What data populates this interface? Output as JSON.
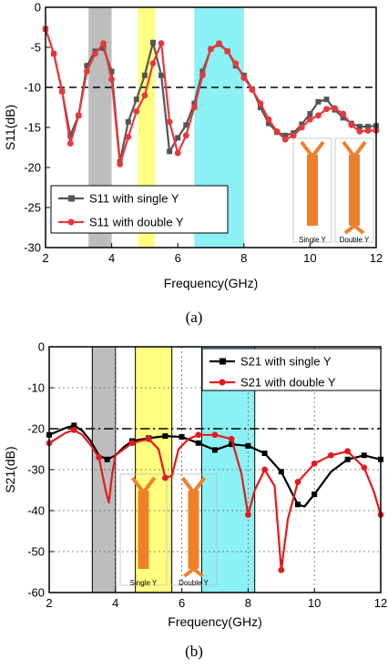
{
  "chart_data": [
    {
      "type": "line",
      "caption": "(a)",
      "xlabel": "Frequency(GHz)",
      "ylabel": "S11(dB)",
      "xlim": [
        2,
        12
      ],
      "ylim": [
        -30,
        0
      ],
      "xticks": [
        2,
        4,
        6,
        8,
        10,
        12
      ],
      "yticks": [
        0,
        -5,
        -10,
        -15,
        -20,
        -25,
        -30
      ],
      "grid": false,
      "reference_line": {
        "y": -10,
        "style": "dashed"
      },
      "legend_position": "lower-left",
      "bands": [
        {
          "x": [
            3.3,
            4.0
          ],
          "color": "#bdbdbd"
        },
        {
          "x": [
            4.8,
            5.3
          ],
          "color": "#ffff80"
        },
        {
          "x": [
            6.5,
            8.0
          ],
          "color": "#8cf1f5"
        }
      ],
      "inset_labels": [
        "Single Y",
        "Double Y"
      ],
      "series": [
        {
          "name": "S11 with single Y",
          "color": "#555555",
          "marker": "square",
          "points": [
            [
              2.0,
              -2.7
            ],
            [
              2.25,
              -5.8
            ],
            [
              2.5,
              -10.5
            ],
            [
              2.75,
              -16.0
            ],
            [
              3.0,
              -13.5
            ],
            [
              3.25,
              -7.3
            ],
            [
              3.5,
              -5.5
            ],
            [
              3.75,
              -5.1
            ],
            [
              4.0,
              -8.0
            ],
            [
              4.25,
              -19.3
            ],
            [
              4.5,
              -14.3
            ],
            [
              4.75,
              -11.5
            ],
            [
              5.0,
              -8.5
            ],
            [
              5.25,
              -4.4
            ],
            [
              5.5,
              -8.5
            ],
            [
              5.75,
              -18.0
            ],
            [
              6.0,
              -16.3
            ],
            [
              6.25,
              -14.7
            ],
            [
              6.5,
              -12.0
            ],
            [
              6.75,
              -8.0
            ],
            [
              7.0,
              -5.2
            ],
            [
              7.25,
              -4.6
            ],
            [
              7.5,
              -5.5
            ],
            [
              7.75,
              -7.3
            ],
            [
              8.0,
              -8.5
            ],
            [
              8.25,
              -10.2
            ],
            [
              8.5,
              -12.5
            ],
            [
              8.75,
              -14.5
            ],
            [
              9.0,
              -15.6
            ],
            [
              9.25,
              -16.0
            ],
            [
              9.5,
              -15.7
            ],
            [
              9.75,
              -14.6
            ],
            [
              10.0,
              -13.3
            ],
            [
              10.25,
              -11.8
            ],
            [
              10.5,
              -11.5
            ],
            [
              10.75,
              -12.8
            ],
            [
              11.0,
              -13.8
            ],
            [
              11.25,
              -14.5
            ],
            [
              11.5,
              -14.9
            ],
            [
              11.75,
              -14.9
            ],
            [
              12.0,
              -14.8
            ]
          ]
        },
        {
          "name": "S11 with double Y",
          "color": "#e8383c",
          "marker": "circle",
          "points": [
            [
              2.0,
              -2.7
            ],
            [
              2.25,
              -5.8
            ],
            [
              2.5,
              -10.5
            ],
            [
              2.75,
              -17.0
            ],
            [
              3.0,
              -13.5
            ],
            [
              3.25,
              -8.0
            ],
            [
              3.5,
              -5.8
            ],
            [
              3.75,
              -4.5
            ],
            [
              4.0,
              -9.0
            ],
            [
              4.25,
              -19.6
            ],
            [
              4.5,
              -16.2
            ],
            [
              4.75,
              -13.0
            ],
            [
              5.0,
              -11.0
            ],
            [
              5.25,
              -7.0
            ],
            [
              5.5,
              -4.5
            ],
            [
              5.75,
              -14.3
            ],
            [
              6.0,
              -18.2
            ],
            [
              6.25,
              -16.0
            ],
            [
              6.5,
              -12.5
            ],
            [
              6.75,
              -8.5
            ],
            [
              7.0,
              -5.2
            ],
            [
              7.25,
              -4.5
            ],
            [
              7.5,
              -5.5
            ],
            [
              7.75,
              -7.0
            ],
            [
              8.0,
              -8.8
            ],
            [
              8.25,
              -10.3
            ],
            [
              8.5,
              -12.0
            ],
            [
              8.75,
              -14.0
            ],
            [
              9.0,
              -15.5
            ],
            [
              9.25,
              -16.5
            ],
            [
              9.5,
              -16.0
            ],
            [
              9.75,
              -15.0
            ],
            [
              10.0,
              -14.0
            ],
            [
              10.25,
              -13.5
            ],
            [
              10.5,
              -12.7
            ],
            [
              10.75,
              -12.6
            ],
            [
              11.0,
              -13.3
            ],
            [
              11.25,
              -14.7
            ],
            [
              11.5,
              -15.5
            ],
            [
              11.75,
              -15.4
            ],
            [
              12.0,
              -15.4
            ]
          ]
        }
      ]
    },
    {
      "type": "line",
      "caption": "(b)",
      "xlabel": "Frequency(GHz)",
      "ylabel": "S21(dB)",
      "xlim": [
        2,
        12
      ],
      "ylim": [
        -60,
        0
      ],
      "xticks": [
        2,
        4,
        6,
        8,
        10,
        12
      ],
      "yticks": [
        0,
        -10,
        -20,
        -30,
        -40,
        -50,
        -60
      ],
      "grid": true,
      "reference_line": {
        "y": -20,
        "style": "dash-dot"
      },
      "legend_position": "top-right",
      "bands": [
        {
          "x": [
            3.3,
            4.0
          ],
          "color": "#bdbdbd"
        },
        {
          "x": [
            4.6,
            5.7
          ],
          "color": "#ffff80"
        },
        {
          "x": [
            6.6,
            8.2
          ],
          "color": "#8cf1f5"
        }
      ],
      "inset_labels": [
        "Single Y",
        "Double Y"
      ],
      "series": [
        {
          "name": "S21 with single Y",
          "color": "#000000",
          "marker": "square",
          "markers_at": [
            2.0,
            2.75,
            3.75,
            4.5,
            5.0,
            5.5,
            6.0,
            6.5,
            7.0,
            7.5,
            8.0,
            8.5,
            9.0,
            9.5,
            10.0,
            11.0,
            11.5,
            12.0
          ],
          "points": [
            [
              2.0,
              -21.5
            ],
            [
              2.5,
              -19.8
            ],
            [
              2.75,
              -19.2
            ],
            [
              3.0,
              -20.5
            ],
            [
              3.25,
              -23.0
            ],
            [
              3.5,
              -26.5
            ],
            [
              3.75,
              -27.5
            ],
            [
              4.0,
              -26.5
            ],
            [
              4.25,
              -24.5
            ],
            [
              4.5,
              -23.0
            ],
            [
              5.0,
              -22.3
            ],
            [
              5.5,
              -21.8
            ],
            [
              6.0,
              -22.0
            ],
            [
              6.5,
              -23.5
            ],
            [
              7.0,
              -25.2
            ],
            [
              7.5,
              -23.8
            ],
            [
              8.0,
              -24.2
            ],
            [
              8.5,
              -26.0
            ],
            [
              9.0,
              -30.5
            ],
            [
              9.5,
              -38.5
            ],
            [
              9.7,
              -39.0
            ],
            [
              10.0,
              -36.0
            ],
            [
              10.5,
              -30.5
            ],
            [
              11.0,
              -27.5
            ],
            [
              11.5,
              -26.5
            ],
            [
              12.0,
              -27.5
            ]
          ]
        },
        {
          "name": "S21 with double Y",
          "color": "#e31a1c",
          "marker": "circle",
          "markers_at": [
            2.0,
            2.75,
            3.5,
            4.5,
            5.0,
            5.5,
            6.5,
            7.0,
            7.5,
            8.0,
            8.5,
            9.0,
            9.5,
            10.0,
            10.5,
            11.0,
            11.5,
            12.0
          ],
          "points": [
            [
              2.0,
              -23.5
            ],
            [
              2.5,
              -21.0
            ],
            [
              2.75,
              -20.3
            ],
            [
              3.0,
              -21.5
            ],
            [
              3.25,
              -24.0
            ],
            [
              3.5,
              -27.0
            ],
            [
              3.7,
              -35.0
            ],
            [
              3.8,
              -38.0
            ],
            [
              3.9,
              -31.0
            ],
            [
              4.0,
              -26.5
            ],
            [
              4.5,
              -23.5
            ],
            [
              5.0,
              -22.5
            ],
            [
              5.3,
              -25.0
            ],
            [
              5.5,
              -32.0
            ],
            [
              5.7,
              -31.5
            ],
            [
              5.9,
              -25.0
            ],
            [
              6.2,
              -22.5
            ],
            [
              6.5,
              -21.5
            ],
            [
              7.0,
              -21.5
            ],
            [
              7.5,
              -22.5
            ],
            [
              7.8,
              -31.0
            ],
            [
              8.0,
              -41.0
            ],
            [
              8.2,
              -35.0
            ],
            [
              8.5,
              -30.0
            ],
            [
              8.8,
              -34.0
            ],
            [
              9.0,
              -54.5
            ],
            [
              9.2,
              -42.0
            ],
            [
              9.5,
              -33.0
            ],
            [
              10.0,
              -28.5
            ],
            [
              10.5,
              -26.5
            ],
            [
              11.0,
              -25.5
            ],
            [
              11.5,
              -29.5
            ],
            [
              11.8,
              -35.5
            ],
            [
              12.0,
              -41.0
            ]
          ]
        }
      ]
    }
  ]
}
